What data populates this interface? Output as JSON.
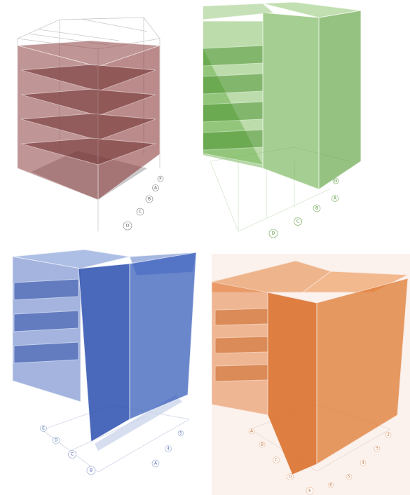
{
  "panels": [
    {
      "id": "red",
      "face_color": "#8e3f3f",
      "line_color": "#cfcfcf",
      "labels": [
        "D",
        "C",
        "B",
        "A",
        "F"
      ]
    },
    {
      "id": "green",
      "face_color": "#5ca83a",
      "line_color": "#e6f1df",
      "labels": [
        "D",
        "C",
        "B",
        "A",
        "G"
      ]
    },
    {
      "id": "blue",
      "face_color": "#2e57b8",
      "line_color": "#d7e0f2",
      "labels": [
        "B",
        "C",
        "D",
        "E",
        "A",
        "4",
        "5"
      ]
    },
    {
      "id": "orange",
      "face_color": "#e07a32",
      "line_color": "#f7d9c3",
      "labels": [
        "E",
        "D",
        "C",
        "B",
        "A",
        "6",
        "5",
        "4",
        "3",
        "2"
      ]
    }
  ]
}
